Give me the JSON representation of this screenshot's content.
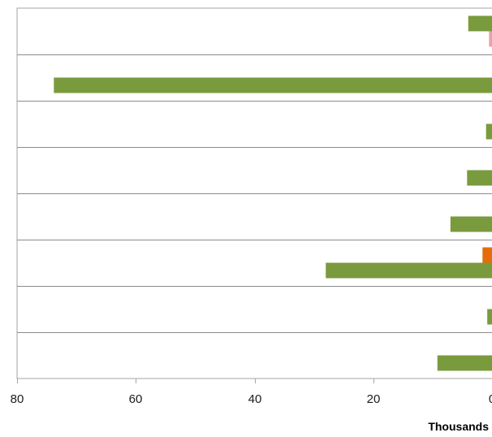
{
  "chart_data": {
    "type": "bar",
    "orientation": "horizontal",
    "x_direction": "reversed",
    "xlim": [
      0,
      80
    ],
    "xticks": [
      80,
      60,
      40,
      20,
      0
    ],
    "xtick_labels": [
      "80",
      "60",
      "40",
      "20",
      "0"
    ],
    "xlabel": "Thousands",
    "grid": "horizontal category lines",
    "row_count": 8,
    "bars": [
      {
        "row": 0,
        "slot": "upper",
        "value": 4.0,
        "color": "#7a9a3e"
      },
      {
        "row": 0,
        "slot": "lower",
        "value": 0.5,
        "color": "#e8a0a8"
      },
      {
        "row": 1,
        "slot": "lower",
        "value": 73.8,
        "color": "#7a9a3e"
      },
      {
        "row": 2,
        "slot": "lower",
        "value": 1.0,
        "color": "#7a9a3e"
      },
      {
        "row": 3,
        "slot": "lower",
        "value": 4.2,
        "color": "#7a9a3e"
      },
      {
        "row": 4,
        "slot": "lower",
        "value": 7.0,
        "color": "#7a9a3e"
      },
      {
        "row": 5,
        "slot": "upper",
        "value": 1.6,
        "color": "#e46c0a"
      },
      {
        "row": 5,
        "slot": "lower",
        "value": 28.0,
        "color": "#7a9a3e"
      },
      {
        "row": 6,
        "slot": "lower",
        "value": 0.8,
        "color": "#7a9a3e"
      },
      {
        "row": 7,
        "slot": "lower",
        "value": 9.2,
        "color": "#7a9a3e"
      }
    ]
  }
}
